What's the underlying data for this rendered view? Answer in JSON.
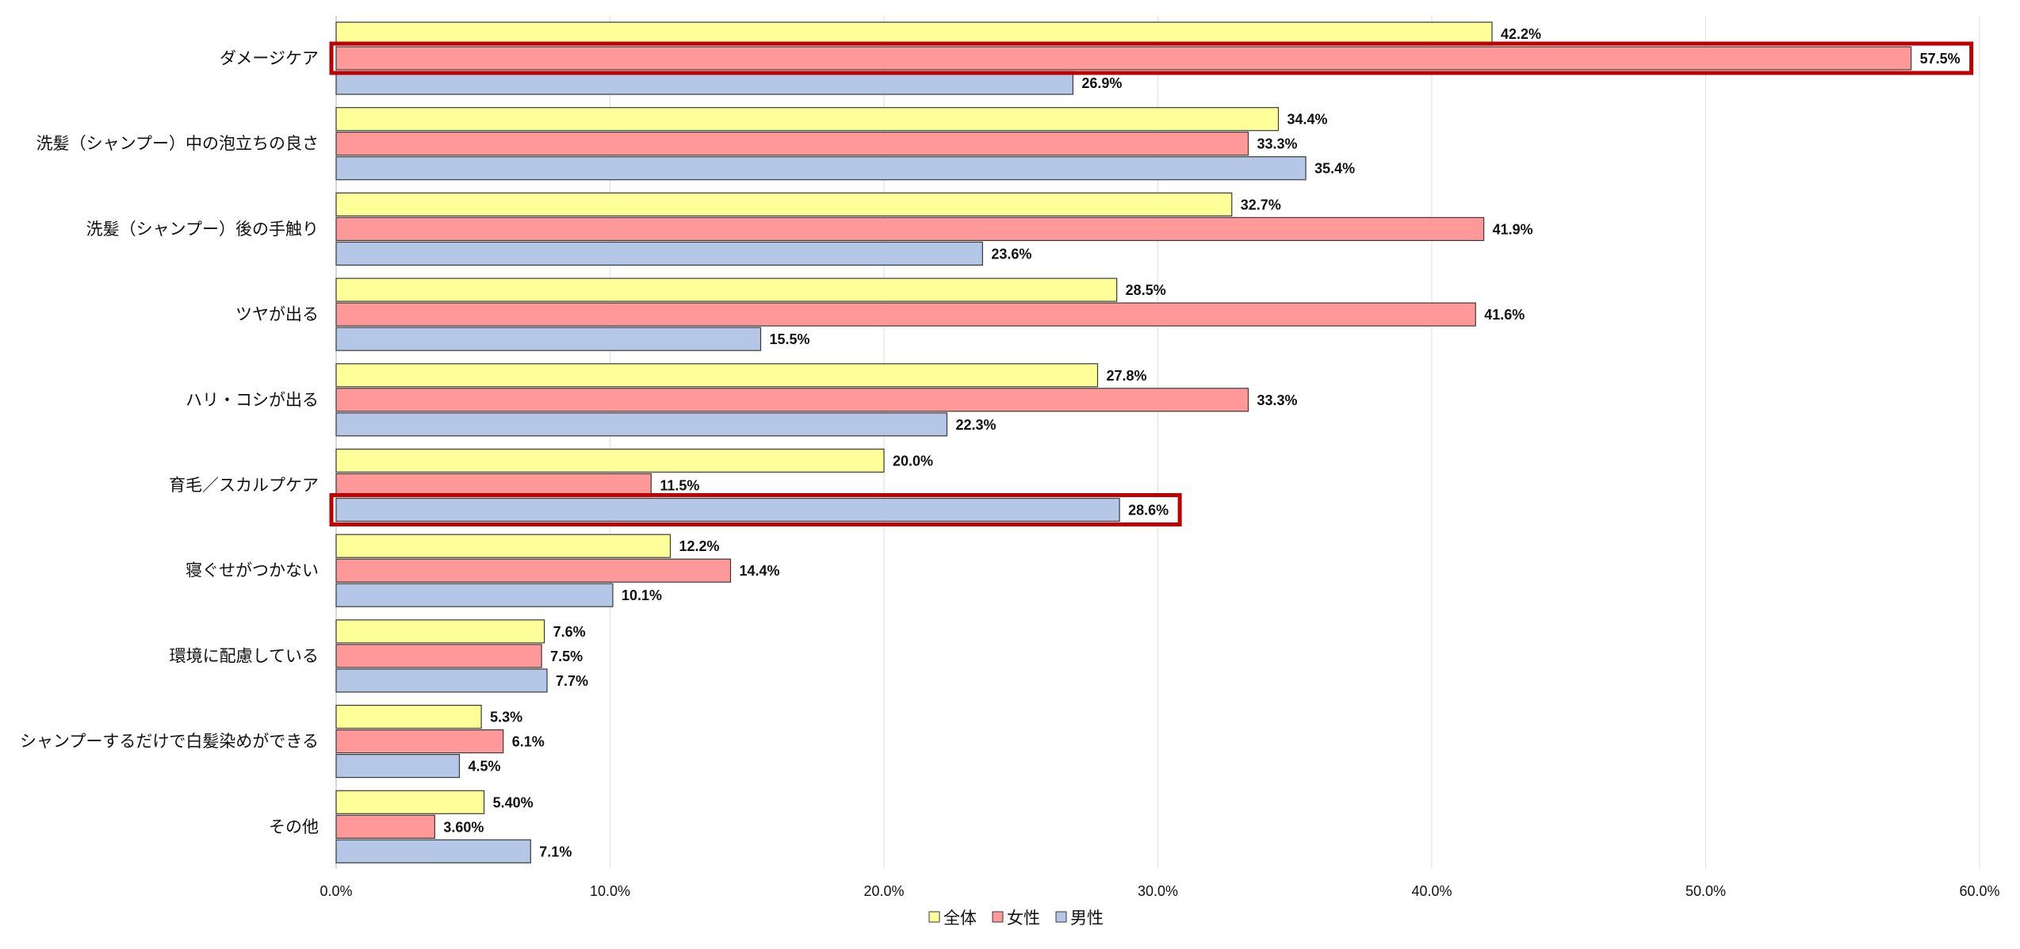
{
  "chart_data": {
    "type": "bar",
    "orientation": "horizontal",
    "categories": [
      "ダメージケア",
      "洗髪（シャンプー）中の泡立ちの良さ",
      "洗髪（シャンプー）後の手触り",
      "ツヤが出る",
      "ハリ・コシが出る",
      "育毛／スカルプケア",
      "寝ぐせがつかない",
      "環境に配慮している",
      "シャンプーするだけで白髪染めができる",
      "その他"
    ],
    "series": [
      {
        "name": "全体",
        "color": "#ffff99",
        "values": [
          42.2,
          34.4,
          32.7,
          28.5,
          27.8,
          20.0,
          12.2,
          7.6,
          5.3,
          5.4
        ],
        "labels": [
          "42.2%",
          "34.4%",
          "32.7%",
          "28.5%",
          "27.8%",
          "20.0%",
          "12.2%",
          "7.6%",
          "5.3%",
          "5.40%"
        ]
      },
      {
        "name": "女性",
        "color": "#ff9999",
        "values": [
          57.5,
          33.3,
          41.9,
          41.6,
          33.3,
          11.5,
          14.4,
          7.5,
          6.1,
          3.6
        ],
        "labels": [
          "57.5%",
          "33.3%",
          "41.9%",
          "41.6%",
          "33.3%",
          "11.5%",
          "14.4%",
          "7.5%",
          "6.1%",
          "3.60%"
        ]
      },
      {
        "name": "男性",
        "color": "#b4c7e7",
        "values": [
          26.9,
          35.4,
          23.6,
          15.5,
          22.3,
          28.6,
          10.1,
          7.7,
          4.5,
          7.1
        ],
        "labels": [
          "26.9%",
          "35.4%",
          "23.6%",
          "15.5%",
          "22.3%",
          "28.6%",
          "10.1%",
          "7.7%",
          "4.5%",
          "7.1%"
        ]
      }
    ],
    "xlim": [
      0,
      60
    ],
    "xticks": [
      "0.0%",
      "10.0%",
      "20.0%",
      "30.0%",
      "40.0%",
      "50.0%",
      "60.0%"
    ],
    "highlights": [
      {
        "category_index": 0,
        "series_index": 1,
        "color": "#c00000"
      },
      {
        "category_index": 5,
        "series_index": 2,
        "color": "#c00000"
      }
    ],
    "legend_position": "bottom",
    "grid": true
  }
}
